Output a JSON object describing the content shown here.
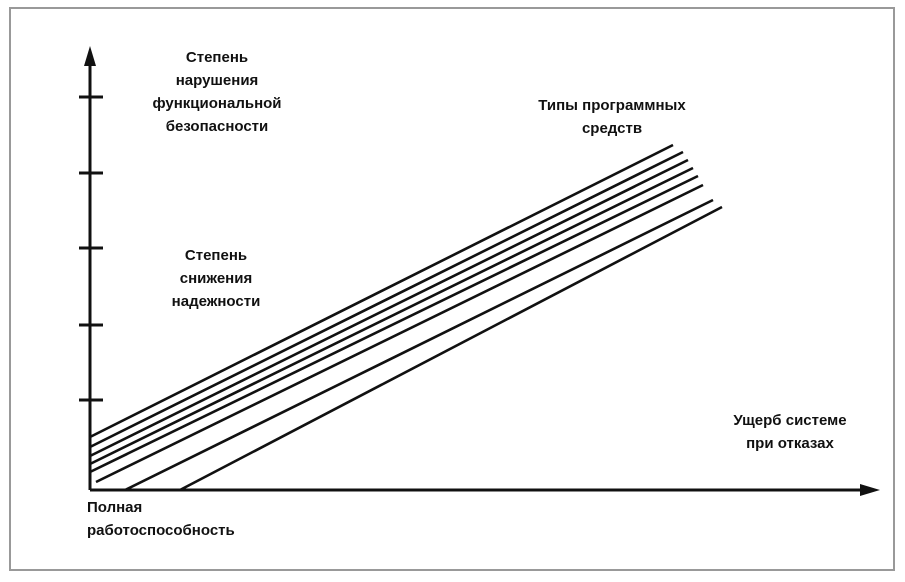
{
  "annotations": [
    {
      "lines": [
        "Степень",
        "нарушения",
        "функциональной",
        "безопасности"
      ]
    },
    {
      "lines": [
        "Степень",
        "снижения",
        "надежности"
      ]
    },
    {
      "lines": [
        "Типы программных",
        "средств"
      ]
    },
    {
      "lines": [
        "Ущерб системе",
        "при отказах"
      ]
    },
    {
      "lines": [
        "Полная",
        "работоспособность"
      ]
    }
  ]
}
